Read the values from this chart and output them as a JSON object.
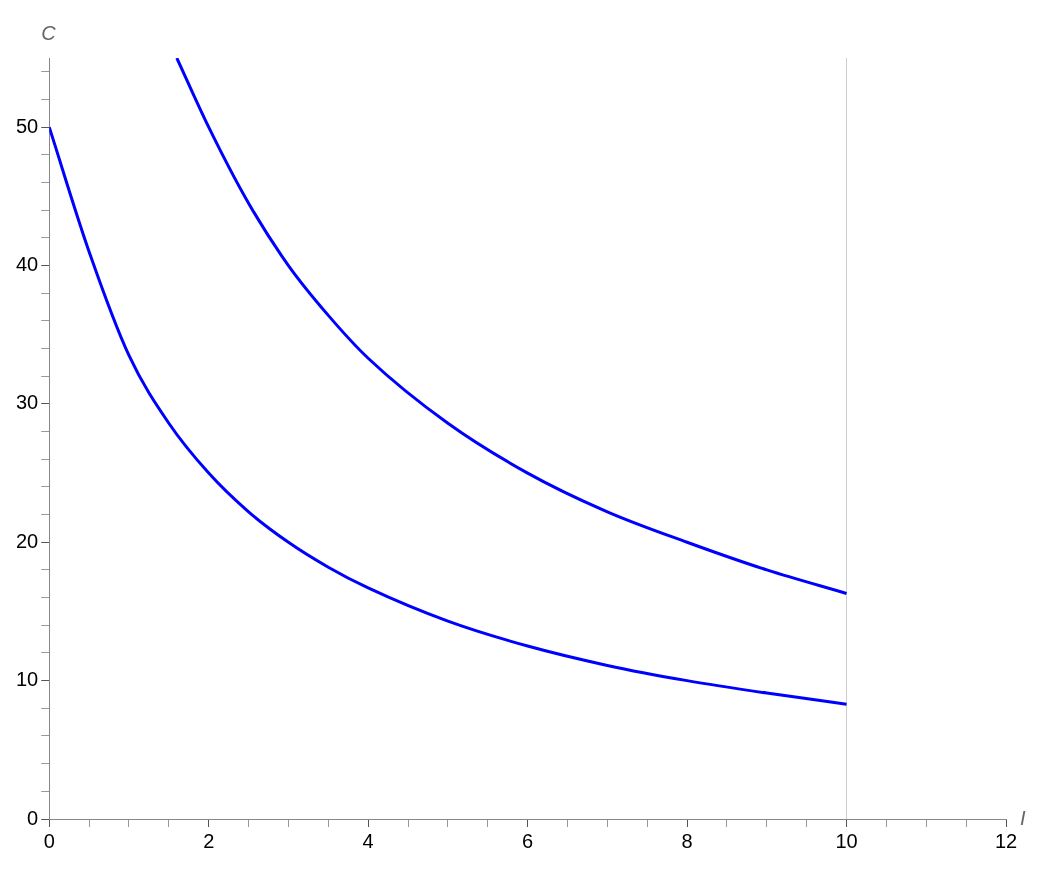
{
  "chart_data": {
    "type": "line",
    "xlabel": "I",
    "ylabel": "C",
    "xlim": [
      0,
      12
    ],
    "ylim": [
      0,
      55
    ],
    "xticks": [
      0,
      {
        "value": 0.5,
        "label": null
      },
      {
        "value": 1,
        "label": null
      },
      {
        "value": 1.5,
        "label": null
      },
      2,
      {
        "value": 2.5,
        "label": null
      },
      {
        "value": 3,
        "label": null
      },
      {
        "value": 3.5,
        "label": null
      },
      4,
      {
        "value": 4.5,
        "label": null
      },
      {
        "value": 5,
        "label": null
      },
      {
        "value": 5.5,
        "label": null
      },
      6,
      {
        "value": 6.5,
        "label": null
      },
      {
        "value": 7,
        "label": null
      },
      {
        "value": 7.5,
        "label": null
      },
      8,
      {
        "value": 8.5,
        "label": null
      },
      {
        "value": 9,
        "label": null
      },
      {
        "value": 9.5,
        "label": null
      },
      10,
      {
        "value": 10.5,
        "label": null
      },
      {
        "value": 11,
        "label": null
      },
      {
        "value": 11.5,
        "label": null
      },
      12
    ],
    "yticks": [
      0,
      {
        "value": 2,
        "label": null
      },
      {
        "value": 4,
        "label": null
      },
      {
        "value": 6,
        "label": null
      },
      {
        "value": 8,
        "label": null
      },
      10,
      {
        "value": 12,
        "label": null
      },
      {
        "value": 14,
        "label": null
      },
      {
        "value": 16,
        "label": null
      },
      {
        "value": 18,
        "label": null
      },
      20,
      {
        "value": 22,
        "label": null
      },
      {
        "value": 24,
        "label": null
      },
      {
        "value": 26,
        "label": null
      },
      {
        "value": 28,
        "label": null
      },
      30,
      {
        "value": 32,
        "label": null
      },
      {
        "value": 34,
        "label": null
      },
      {
        "value": 36,
        "label": null
      },
      {
        "value": 38,
        "label": null
      },
      40,
      {
        "value": 42,
        "label": null
      },
      {
        "value": 44,
        "label": null
      },
      {
        "value": 46,
        "label": null
      },
      {
        "value": 48,
        "label": null
      },
      50,
      {
        "value": 52,
        "label": null
      },
      {
        "value": 54,
        "label": null
      }
    ],
    "grid": false,
    "legend": false,
    "marker": "none",
    "line_style": "solid",
    "ref_lines": [
      {
        "axis": "x",
        "value": 10,
        "color": "#cccccc"
      }
    ],
    "series": [
      {
        "color": "#0000ff",
        "x": [
          0,
          0.5,
          1,
          1.5,
          2,
          2.5,
          3,
          3.5,
          4,
          5,
          6,
          7,
          8,
          9,
          10
        ],
        "values": [
          50,
          41,
          33.5,
          28.6,
          25,
          22.2,
          20,
          18.2,
          16.7,
          14.3,
          12.5,
          11.1,
          10,
          9.1,
          8.3
        ]
      },
      {
        "color": "#0000ff",
        "x": [
          1.6,
          2,
          2.5,
          3,
          3.5,
          4,
          5,
          6,
          7,
          8,
          9,
          10
        ],
        "values": [
          55,
          50,
          44.5,
          40,
          36.4,
          33.3,
          28.6,
          25,
          22.2,
          20,
          18,
          16.3
        ]
      }
    ]
  }
}
